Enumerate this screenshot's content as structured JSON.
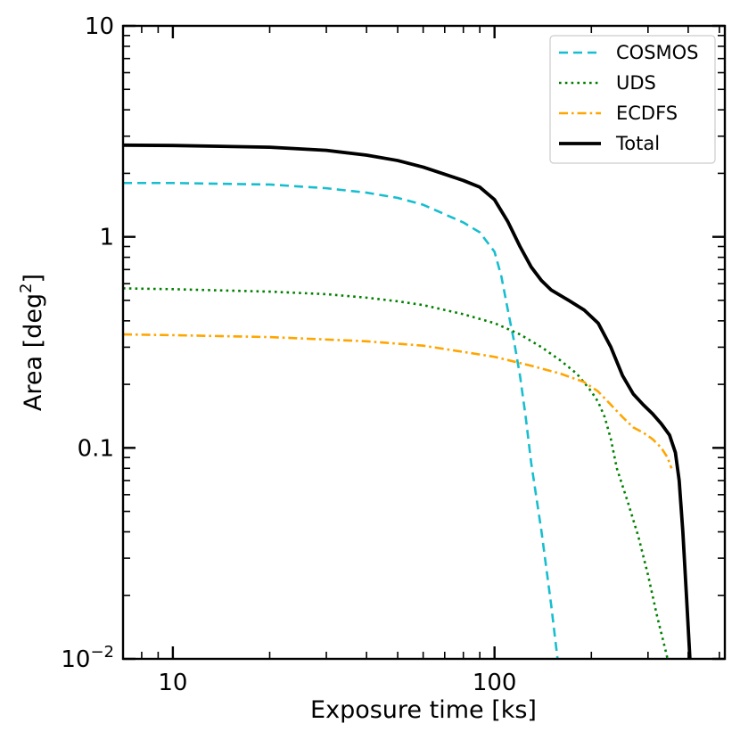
{
  "chart_data": {
    "type": "line",
    "xscale": "log",
    "yscale": "log",
    "xlabel": "Exposure time [ks]",
    "ylabel": "Area [deg²]",
    "ylabel_parts": {
      "main": "Area [deg",
      "sup": "2",
      "end": "]"
    },
    "xlim": [
      7,
      520
    ],
    "ylim": [
      0.01,
      10
    ],
    "x_ticks": [
      {
        "value": 10,
        "label": "10"
      },
      {
        "value": 100,
        "label": "100"
      }
    ],
    "y_ticks": [
      {
        "value": 10,
        "label": "10"
      },
      {
        "value": 1,
        "label": "1"
      },
      {
        "value": 0.1,
        "label": "0.1"
      },
      {
        "value": 0.01,
        "label": "10",
        "sup": "−2"
      }
    ],
    "legend_position": "top-right",
    "series": [
      {
        "name": "COSMOS",
        "color": "#17becf",
        "dash": "dashed",
        "points": [
          [
            7,
            1.8
          ],
          [
            10,
            1.8
          ],
          [
            20,
            1.77
          ],
          [
            30,
            1.7
          ],
          [
            40,
            1.62
          ],
          [
            50,
            1.53
          ],
          [
            60,
            1.42
          ],
          [
            70,
            1.28
          ],
          [
            80,
            1.17
          ],
          [
            90,
            1.05
          ],
          [
            100,
            0.85
          ],
          [
            105,
            0.65
          ],
          [
            110,
            0.45
          ],
          [
            115,
            0.32
          ],
          [
            120,
            0.22
          ],
          [
            125,
            0.14
          ],
          [
            130,
            0.085
          ],
          [
            140,
            0.04
          ],
          [
            150,
            0.018
          ],
          [
            157,
            0.01
          ]
        ]
      },
      {
        "name": "UDS",
        "color": "#008000",
        "dash": "dotted",
        "points": [
          [
            7,
            0.57
          ],
          [
            10,
            0.565
          ],
          [
            20,
            0.55
          ],
          [
            30,
            0.535
          ],
          [
            40,
            0.515
          ],
          [
            50,
            0.495
          ],
          [
            60,
            0.475
          ],
          [
            80,
            0.43
          ],
          [
            100,
            0.39
          ],
          [
            120,
            0.345
          ],
          [
            140,
            0.3
          ],
          [
            160,
            0.26
          ],
          [
            180,
            0.225
          ],
          [
            200,
            0.185
          ],
          [
            210,
            0.165
          ],
          [
            220,
            0.14
          ],
          [
            230,
            0.11
          ],
          [
            240,
            0.08
          ],
          [
            260,
            0.055
          ],
          [
            280,
            0.038
          ],
          [
            300,
            0.025
          ],
          [
            320,
            0.016
          ],
          [
            340,
            0.011
          ],
          [
            345,
            0.01
          ]
        ]
      },
      {
        "name": "ECDFS",
        "color": "#ffa500",
        "dash": "dashdot",
        "points": [
          [
            7,
            0.345
          ],
          [
            10,
            0.342
          ],
          [
            20,
            0.335
          ],
          [
            40,
            0.32
          ],
          [
            60,
            0.305
          ],
          [
            80,
            0.285
          ],
          [
            100,
            0.27
          ],
          [
            130,
            0.245
          ],
          [
            160,
            0.225
          ],
          [
            190,
            0.205
          ],
          [
            210,
            0.185
          ],
          [
            230,
            0.16
          ],
          [
            250,
            0.14
          ],
          [
            270,
            0.125
          ],
          [
            290,
            0.118
          ],
          [
            310,
            0.11
          ],
          [
            330,
            0.1
          ],
          [
            345,
            0.09
          ],
          [
            355,
            0.08
          ]
        ]
      },
      {
        "name": "Total",
        "color": "#000000",
        "dash": "solid",
        "points": [
          [
            7,
            2.72
          ],
          [
            10,
            2.71
          ],
          [
            20,
            2.66
          ],
          [
            30,
            2.57
          ],
          [
            40,
            2.44
          ],
          [
            50,
            2.3
          ],
          [
            60,
            2.14
          ],
          [
            70,
            1.98
          ],
          [
            80,
            1.85
          ],
          [
            90,
            1.72
          ],
          [
            100,
            1.5
          ],
          [
            110,
            1.18
          ],
          [
            120,
            0.9
          ],
          [
            130,
            0.72
          ],
          [
            140,
            0.62
          ],
          [
            150,
            0.56
          ],
          [
            170,
            0.5
          ],
          [
            190,
            0.45
          ],
          [
            210,
            0.39
          ],
          [
            230,
            0.3
          ],
          [
            250,
            0.22
          ],
          [
            270,
            0.18
          ],
          [
            290,
            0.16
          ],
          [
            310,
            0.145
          ],
          [
            330,
            0.13
          ],
          [
            350,
            0.115
          ],
          [
            365,
            0.095
          ],
          [
            375,
            0.07
          ],
          [
            385,
            0.04
          ],
          [
            395,
            0.02
          ],
          [
            405,
            0.01
          ]
        ]
      }
    ]
  }
}
